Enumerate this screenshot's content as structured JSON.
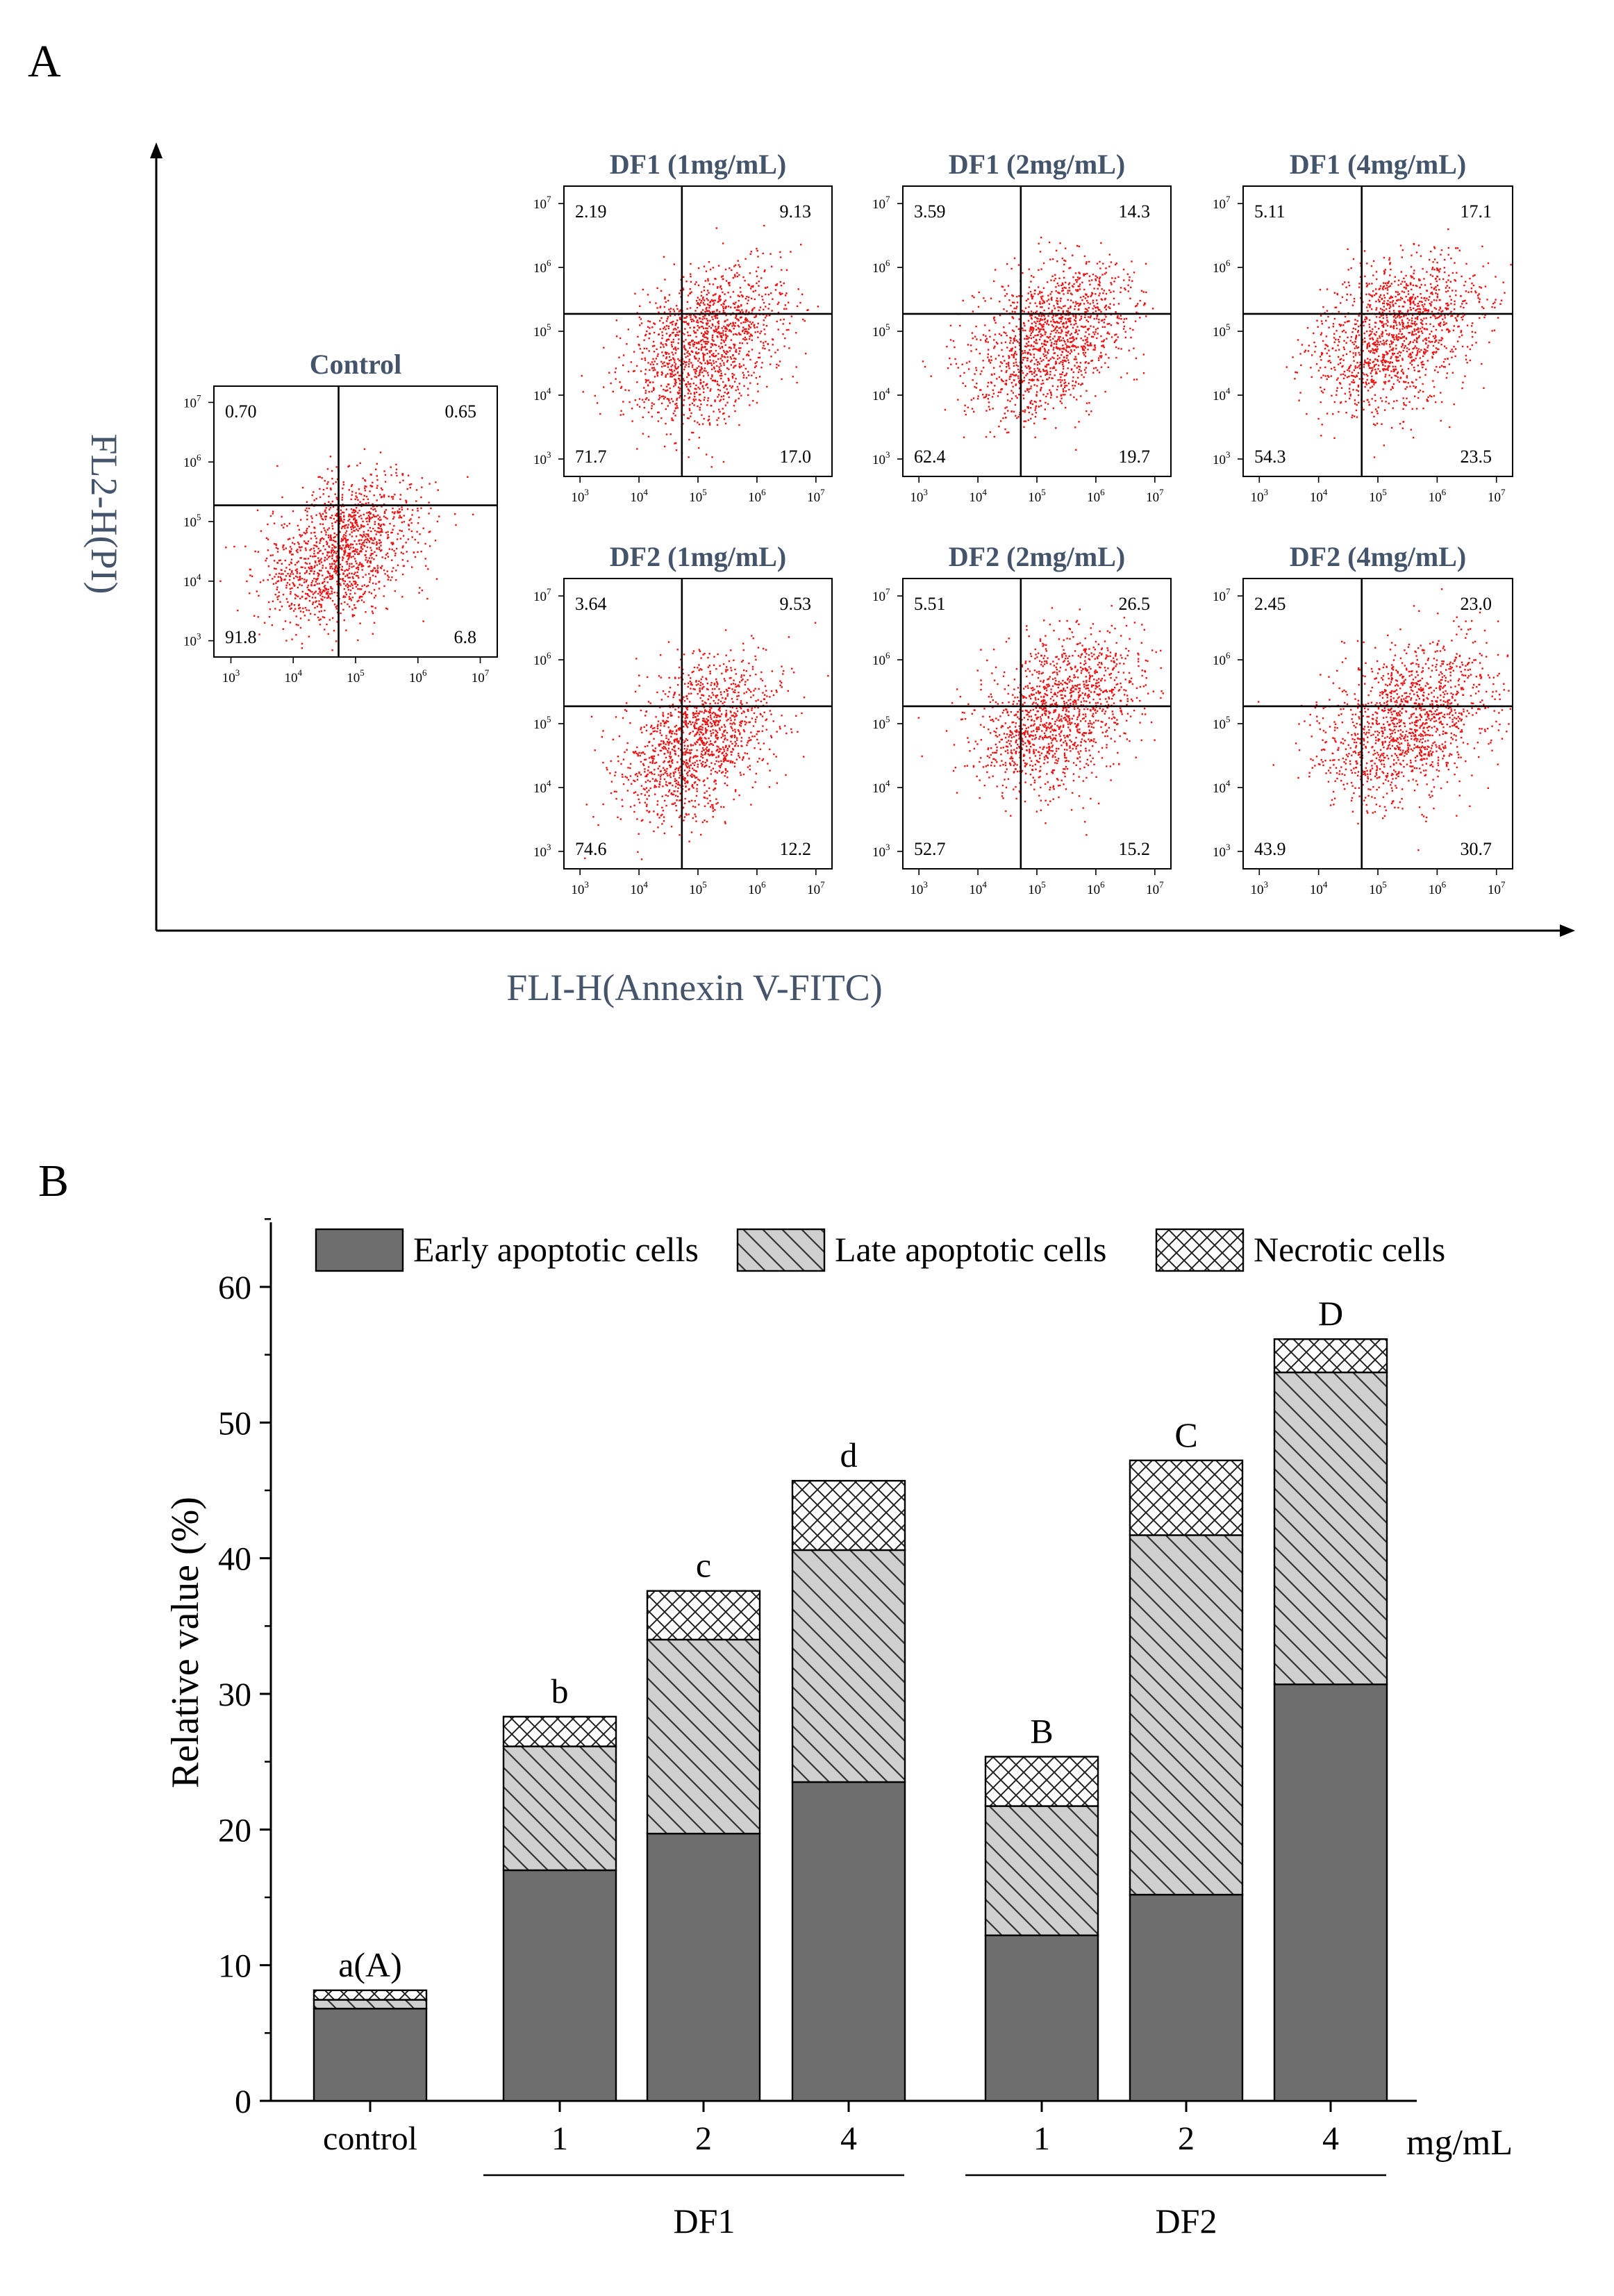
{
  "panel_a": {
    "label": "A",
    "y_axis_label": "FL2-H(PI)",
    "x_axis_label": "FLI-H(Annexin V-FITC)",
    "tick_labels": [
      "10^3",
      "10^4",
      "10^5",
      "10^6",
      "10^7"
    ],
    "plots": [
      {
        "title": "Control",
        "ul": "0.70",
        "ur": "0.65",
        "ll": "91.8",
        "lr": "6.8"
      },
      {
        "title": "DF1 (1mg/mL)",
        "ul": "2.19",
        "ur": "9.13",
        "ll": "71.7",
        "lr": "17.0"
      },
      {
        "title": "DF1 (2mg/mL)",
        "ul": "3.59",
        "ur": "14.3",
        "ll": "62.4",
        "lr": "19.7"
      },
      {
        "title": "DF1 (4mg/mL)",
        "ul": "5.11",
        "ur": "17.1",
        "ll": "54.3",
        "lr": "23.5"
      },
      {
        "title": "DF2 (1mg/mL)",
        "ul": "3.64",
        "ur": "9.53",
        "ll": "74.6",
        "lr": "12.2"
      },
      {
        "title": "DF2 (2mg/mL)",
        "ul": "5.51",
        "ur": "26.5",
        "ll": "52.7",
        "lr": "15.2"
      },
      {
        "title": "DF2 (4mg/mL)",
        "ul": "2.45",
        "ur": "23.0",
        "ll": "43.9",
        "lr": "30.7"
      }
    ],
    "colors": {
      "dots": "#ee1111",
      "title": "#44546a",
      "axis": "#000000"
    }
  },
  "chart_data": {
    "type": "bar",
    "stacked": true,
    "panel_label": "B",
    "categories": [
      "control",
      "1",
      "2",
      "4",
      "1",
      "2",
      "4"
    ],
    "groups": [
      {
        "name": "DF1",
        "members": [
          1,
          2,
          3
        ]
      },
      {
        "name": "DF2",
        "members": [
          4,
          5,
          6
        ]
      }
    ],
    "series": [
      {
        "name": "Early apoptotic cells",
        "pattern": "solid",
        "values": [
          6.8,
          17.0,
          19.7,
          23.5,
          12.2,
          15.2,
          30.7
        ]
      },
      {
        "name": "Late apoptotic cells",
        "pattern": "hatch",
        "values": [
          0.65,
          9.13,
          14.3,
          17.1,
          9.53,
          26.5,
          23.0
        ]
      },
      {
        "name": "Necrotic cells",
        "pattern": "cross",
        "values": [
          0.7,
          2.19,
          3.59,
          5.11,
          3.64,
          5.51,
          2.45
        ]
      }
    ],
    "significance_labels": [
      "a(A)",
      "b",
      "c",
      "d",
      "B",
      "C",
      "D"
    ],
    "ylabel": "Relative value (%)",
    "unit_label": "mg/mL",
    "ylim": [
      0,
      65
    ],
    "yticks": [
      0,
      10,
      20,
      30,
      40,
      50,
      60
    ],
    "legend_position": "top",
    "colors": {
      "early": "#6e6e6e",
      "late": "#cccccc",
      "necrotic": "#ffffff"
    }
  }
}
